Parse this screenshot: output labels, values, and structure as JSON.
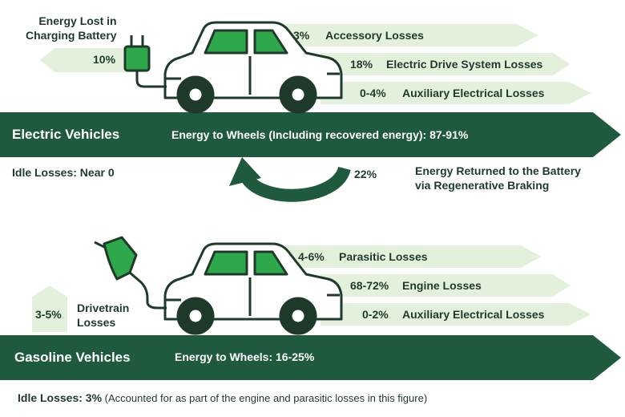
{
  "colors": {
    "dark_green": "#1f5a3e",
    "light_green": "#e3f1dc",
    "accent_green": "#2ea84a",
    "car_outline": "#1f3a2b"
  },
  "ev": {
    "band_title": "Electric Vehicles",
    "band_text": "Energy to Wheels (Including recovered energy): 87-91%",
    "charging_label": "Energy Lost in\nCharging Battery",
    "charging_pct": "10%",
    "losses": [
      {
        "pct": "3%",
        "label": "Accessory Losses"
      },
      {
        "pct": "18%",
        "label": "Electric Drive System Losses"
      },
      {
        "pct": "0-4%",
        "label": "Auxiliary Electrical Losses"
      }
    ],
    "idle": "Idle Losses: Near 0",
    "regen_pct": "22%",
    "regen_label": "Energy Returned to the Battery\nvia Regenerative Braking"
  },
  "gas": {
    "band_title": "Gasoline Vehicles",
    "band_text": "Energy to Wheels: 16-25%",
    "drivetrain_pct": "3-5%",
    "drivetrain_label": "Drivetrain\nLosses",
    "losses": [
      {
        "pct": "4-6%",
        "label": "Parasitic Losses"
      },
      {
        "pct": "68-72%",
        "label": "Engine Losses"
      },
      {
        "pct": "0-2%",
        "label": "Auxiliary Electrical Losses"
      }
    ],
    "idle_bold": "Idle Losses: 3%",
    "idle_note": " (Accounted for as part of the engine and parasitic losses in this figure)"
  }
}
